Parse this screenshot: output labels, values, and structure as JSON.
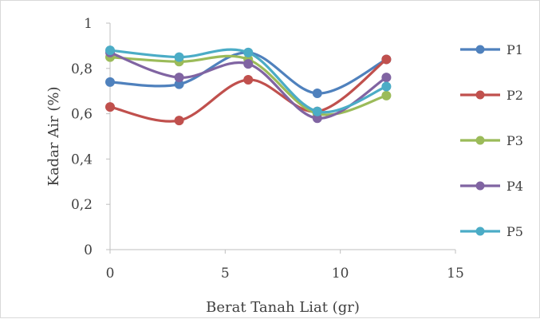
{
  "chart_data": {
    "type": "line",
    "smooth": true,
    "markers": true,
    "title": "",
    "xlabel": "Berat Tanah Liat (gr)",
    "ylabel": "Kadar Air (%)",
    "xlim": [
      0,
      15
    ],
    "ylim": [
      0,
      1
    ],
    "x_ticks": [
      0,
      5,
      10,
      15
    ],
    "y_ticks": [
      0,
      0.2,
      0.4,
      0.6,
      0.8,
      1
    ],
    "x_tick_labels": [
      "0",
      "5",
      "10",
      "15"
    ],
    "y_tick_labels": [
      "0",
      "0,2",
      "0,4",
      "0,6",
      "0,8",
      "1"
    ],
    "grid": false,
    "legend_position": "right",
    "x": [
      0,
      3,
      6,
      9,
      12
    ],
    "series": [
      {
        "name": "P1",
        "color": "#4f81bd",
        "values": [
          0.74,
          0.73,
          0.87,
          0.69,
          0.84
        ]
      },
      {
        "name": "P2",
        "color": "#c0504d",
        "values": [
          0.63,
          0.57,
          0.75,
          0.61,
          0.84
        ]
      },
      {
        "name": "P3",
        "color": "#9bbb59",
        "values": [
          0.85,
          0.83,
          0.84,
          0.6,
          0.68
        ]
      },
      {
        "name": "P4",
        "color": "#8064a2",
        "values": [
          0.87,
          0.76,
          0.82,
          0.58,
          0.76
        ]
      },
      {
        "name": "P5",
        "color": "#4bacc6",
        "values": [
          0.88,
          0.85,
          0.87,
          0.61,
          0.72
        ]
      }
    ]
  }
}
